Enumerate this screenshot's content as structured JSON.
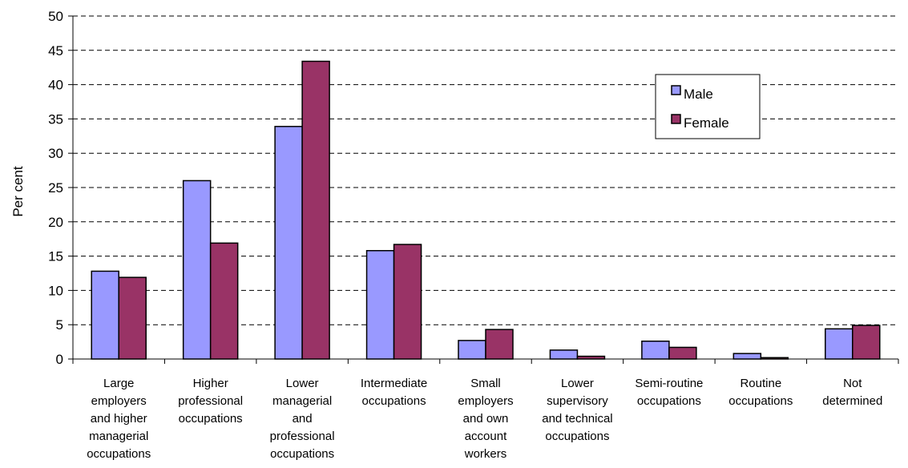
{
  "chart_data": {
    "type": "bar",
    "title": "",
    "xlabel": "",
    "ylabel": "Per cent",
    "ylim": [
      0,
      50
    ],
    "ytick_step": 5,
    "grid": true,
    "legend_position": "top-right",
    "categories": [
      "Large employers and higher managerial occupations",
      "Higher professional occupations",
      "Lower managerial and professional occupations",
      "Intermediate occupations",
      "Small employers and own account workers",
      "Lower supervisory and technical occupations",
      "Semi-routine occupations",
      "Routine occupations",
      "Not determined"
    ],
    "category_lines": [
      [
        "Large",
        "employers",
        "and higher",
        "managerial",
        "occupations"
      ],
      [
        "Higher",
        "professional",
        "occupations"
      ],
      [
        "Lower",
        "managerial",
        "and",
        "professional",
        "occupations"
      ],
      [
        "Intermediate",
        "occupations"
      ],
      [
        "Small",
        "employers",
        "and own",
        "account",
        "workers"
      ],
      [
        "Lower",
        "supervisory",
        "and technical",
        "occupations"
      ],
      [
        "Semi-routine",
        "occupations"
      ],
      [
        "Routine",
        "occupations"
      ],
      [
        "Not",
        "determined"
      ]
    ],
    "series": [
      {
        "name": "Male",
        "color": "#9999ff",
        "values": [
          12.8,
          26.0,
          33.9,
          15.8,
          2.7,
          1.3,
          2.6,
          0.8,
          4.4
        ]
      },
      {
        "name": "Female",
        "color": "#993366",
        "values": [
          11.9,
          16.9,
          43.4,
          16.7,
          4.3,
          0.4,
          1.7,
          0.2,
          4.9
        ]
      }
    ]
  }
}
